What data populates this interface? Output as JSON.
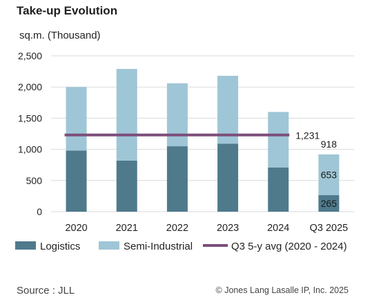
{
  "header": {
    "title": "Take-up Evolution",
    "unit": "sq.m. (Thousand)"
  },
  "footer": {
    "source": "Source : JLL",
    "copyright": "© Jones Lang Lasalle IP, Inc. 2025"
  },
  "colors": {
    "logistics": "#4f7a8c",
    "semi_industrial": "#9fc6d6",
    "average": "#7d4e7b",
    "grid": "#d9d9d9"
  },
  "chart_data": {
    "type": "bar",
    "stacked": true,
    "title": "Take-up Evolution",
    "ylabel": "sq.m. (Thousand)",
    "categories": [
      "2020",
      "2021",
      "2022",
      "2023",
      "2024",
      "Q3 2025"
    ],
    "series": [
      {
        "name": "Logistics",
        "values": [
          980,
          820,
          1050,
          1090,
          710,
          265
        ]
      },
      {
        "name": "Semi-Industrial",
        "values": [
          1020,
          1470,
          1010,
          1090,
          890,
          653
        ]
      }
    ],
    "ylim": [
      0,
      2500
    ],
    "yticks": [
      0,
      500,
      1000,
      1500,
      2000,
      2500
    ],
    "ytick_labels": [
      "0",
      "500",
      "1,000",
      "1,500",
      "2,000",
      "2,500"
    ],
    "grid": true,
    "legend_position": "bottom",
    "average_line": {
      "name": "Q3 5-y avg (2020 - 2024)",
      "value": 1231,
      "label": "1,231",
      "from_category": "2020",
      "to_category": "2024"
    },
    "data_labels": [
      {
        "category": "Q3 2025",
        "series": "Logistics",
        "label": "265"
      },
      {
        "category": "Q3 2025",
        "series": "Semi-Industrial",
        "label": "653"
      },
      {
        "category": "Q3 2025",
        "series": "total",
        "label": "918"
      }
    ]
  }
}
